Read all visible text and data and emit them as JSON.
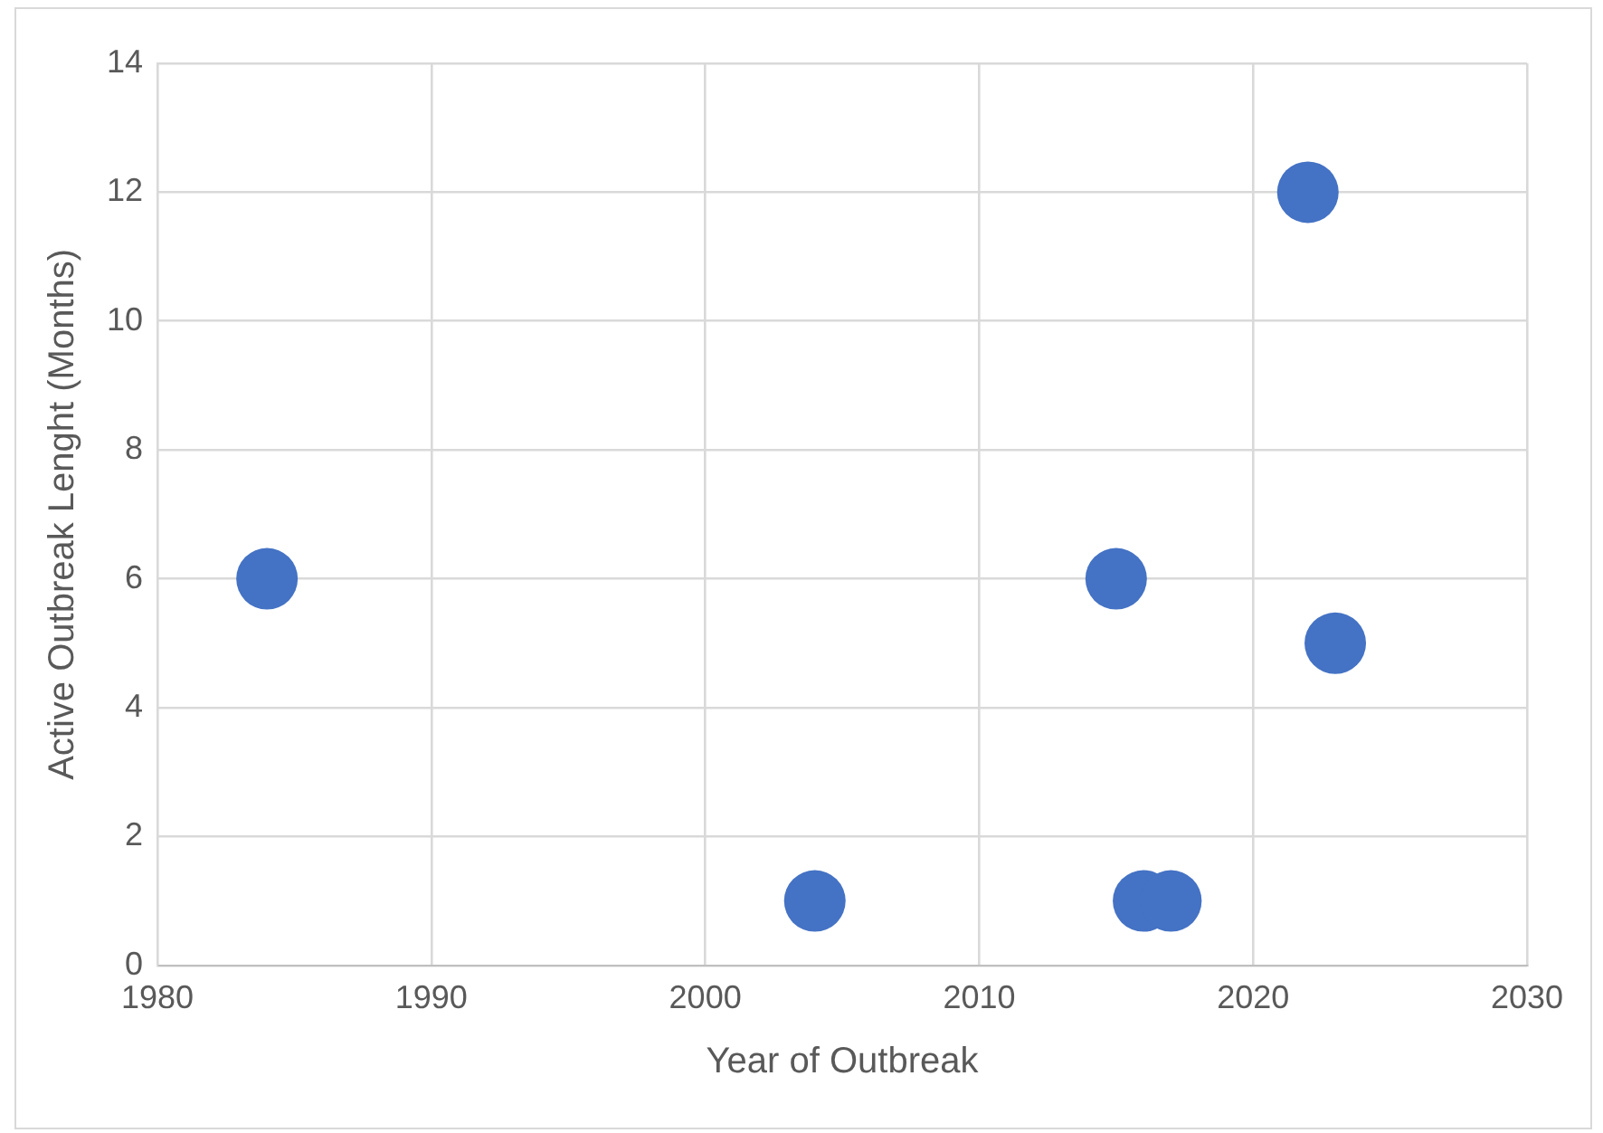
{
  "chart_data": {
    "type": "scatter",
    "xlabel": "Year of Outbreak",
    "ylabel": "Active Outbreak Lenght (Months)",
    "x": [
      1984,
      2004,
      2015,
      2016,
      2017,
      2022,
      2023
    ],
    "series": [
      {
        "color": "#4472c4",
        "values": [
          6,
          1,
          6,
          1,
          1,
          12,
          5
        ]
      }
    ],
    "xlim": [
      1980,
      2030
    ],
    "xticks": [
      1980,
      1990,
      2000,
      2010,
      2020,
      2030
    ],
    "ylim": [
      0,
      14
    ],
    "yticks": [
      0,
      2,
      4,
      6,
      8,
      10,
      12,
      14
    ],
    "grid": true,
    "marker": "circle",
    "legend": false
  }
}
